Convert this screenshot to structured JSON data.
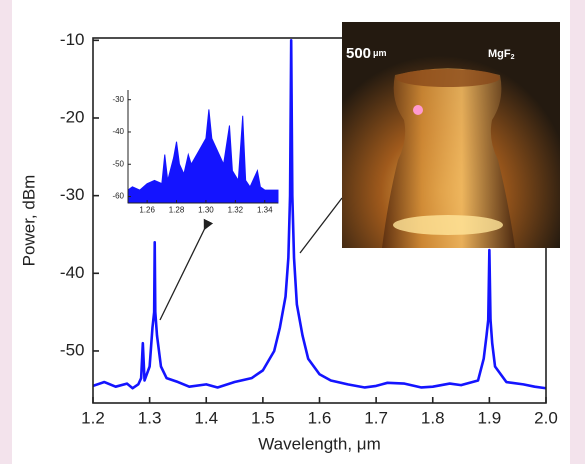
{
  "chart_data": [
    {
      "type": "line",
      "x_label": "Wavelength, μm",
      "y_label": "Power, dBm",
      "color": "#1414ff",
      "xlim": [
        1.2,
        2.0
      ],
      "ylim": [
        -56.7,
        -9.7
      ],
      "xticks": [
        {
          "value": 1.2,
          "label": "1.2"
        },
        1.3,
        1.4,
        1.5,
        1.6,
        1.7,
        1.8,
        1.9,
        {
          "value": 2,
          "label": "2.0"
        }
      ],
      "yticks": [
        -10,
        -20,
        -30,
        -40,
        -50
      ],
      "x": [
        1.2,
        1.22,
        1.24,
        1.26,
        1.27,
        1.28,
        1.285,
        1.288,
        1.291,
        1.3,
        1.305,
        1.308,
        1.309,
        1.31,
        1.313,
        1.32,
        1.33,
        1.35,
        1.37,
        1.4,
        1.42,
        1.45,
        1.48,
        1.5,
        1.52,
        1.53,
        1.54,
        1.545,
        1.548,
        1.55,
        1.552,
        1.555,
        1.56,
        1.57,
        1.58,
        1.6,
        1.62,
        1.65,
        1.68,
        1.7,
        1.72,
        1.75,
        1.78,
        1.8,
        1.83,
        1.85,
        1.88,
        1.89,
        1.895,
        1.898,
        1.9,
        1.902,
        1.905,
        1.91,
        1.93,
        1.96,
        1.98,
        2.0
      ],
      "values": [
        -54.5,
        -54.0,
        -54.6,
        -54.2,
        -54.8,
        -54.3,
        -53.5,
        -49,
        -53.8,
        -52,
        -47,
        -45,
        -36,
        -45,
        -48,
        -52,
        -53.5,
        -54,
        -54.6,
        -54.3,
        -54.7,
        -54.0,
        -53.5,
        -52.5,
        -50,
        -47,
        -43,
        -38,
        -30,
        -10,
        -30,
        -38,
        -44,
        -48,
        -51,
        -53,
        -53.8,
        -54.3,
        -54.7,
        -54.5,
        -54.1,
        -54.2,
        -54.7,
        -54.6,
        -54.2,
        -54.4,
        -53.8,
        -51,
        -48,
        -46,
        -37,
        -46,
        -49,
        -52,
        -54,
        -54.3,
        -54.6,
        -54.8
      ]
    },
    {
      "type": "area",
      "color": "#1414ff",
      "xlim": [
        1.247,
        1.349
      ],
      "ylim": [
        -62,
        -27
      ],
      "xticks": [
        1.26,
        1.28,
        {
          "value": 1.3,
          "label": "1.30"
        },
        1.32,
        1.34
      ],
      "yticks": [
        -30,
        -40,
        -50,
        -60
      ],
      "x": [
        1.247,
        1.25,
        1.255,
        1.26,
        1.265,
        1.27,
        1.272,
        1.274,
        1.278,
        1.28,
        1.282,
        1.285,
        1.288,
        1.29,
        1.295,
        1.3,
        1.302,
        1.304,
        1.308,
        1.312,
        1.316,
        1.318,
        1.322,
        1.325,
        1.327,
        1.33,
        1.335,
        1.337,
        1.34,
        1.349
      ],
      "values": [
        -58,
        -57,
        -58,
        -56,
        -55,
        -56,
        -47,
        -55,
        -48,
        -43,
        -50,
        -53,
        -47,
        -50,
        -46,
        -42,
        -33,
        -42,
        -46,
        -50,
        -38,
        -52,
        -55,
        -35,
        -55,
        -57,
        -52,
        -57,
        -58,
        -58
      ]
    }
  ],
  "photo": {
    "scale_value": "500",
    "scale_unit": "μm",
    "material": "MgF",
    "material_subscript": "2"
  }
}
